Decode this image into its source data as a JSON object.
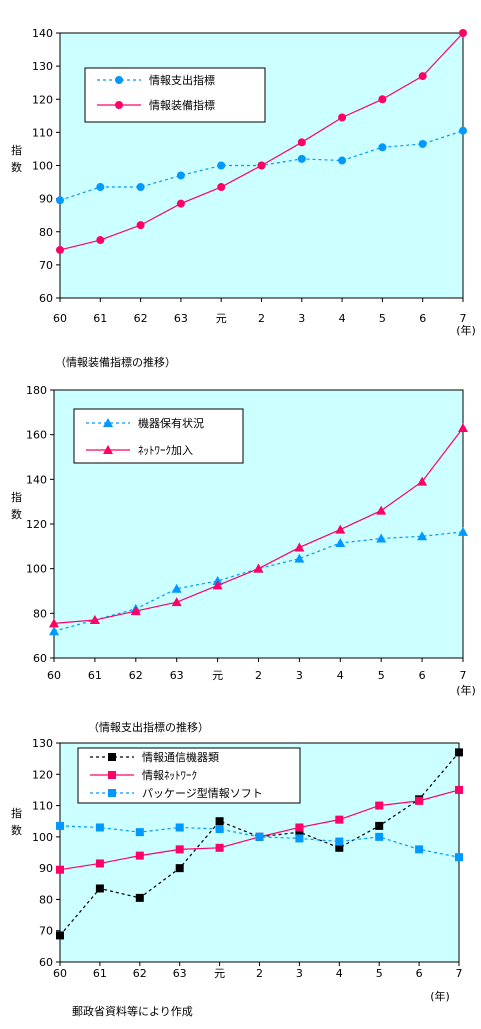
{
  "chart_data": [
    {
      "type": "line",
      "categories": [
        "60",
        "61",
        "62",
        "63",
        "元",
        "2",
        "3",
        "4",
        "5",
        "6",
        "7"
      ],
      "x_unit": "(年)",
      "ylabel": "指数",
      "ylim": [
        60,
        140
      ],
      "yticks": [
        60,
        70,
        80,
        90,
        100,
        110,
        120,
        130,
        140
      ],
      "grid": false,
      "background": "#ccffff",
      "legend_position": "top-left",
      "series": [
        {
          "name": "情報支出指標",
          "color": "#0099ff",
          "dashed": true,
          "marker": "circle",
          "values": [
            89.5,
            93.5,
            93.5,
            97.0,
            100.0,
            100.0,
            102.0,
            101.5,
            105.5,
            106.5,
            110.5
          ]
        },
        {
          "name": "情報装備指標",
          "color": "#ff0066",
          "dashed": false,
          "marker": "circle",
          "values": [
            74.5,
            77.5,
            82.0,
            88.5,
            93.5,
            100.0,
            107.0,
            114.5,
            120.0,
            127.0,
            140.0
          ]
        }
      ]
    },
    {
      "type": "line",
      "title": "（情報装備指標の推移）",
      "categories": [
        "60",
        "61",
        "62",
        "63",
        "元",
        "2",
        "3",
        "4",
        "5",
        "6",
        "7"
      ],
      "x_unit": "(年)",
      "ylabel": "指数",
      "ylim": [
        60,
        180
      ],
      "yticks": [
        60,
        80,
        100,
        120,
        140,
        160,
        180
      ],
      "grid": false,
      "background": "#ccffff",
      "legend_position": "top-left",
      "series": [
        {
          "name": "機器保有状況",
          "color": "#0099ff",
          "dashed": true,
          "marker": "triangle",
          "values": [
            72.0,
            77.0,
            82.0,
            91.0,
            94.5,
            100.0,
            104.5,
            111.5,
            113.5,
            114.5,
            116.5
          ]
        },
        {
          "name": "ﾈｯﾄﾜｰｸ加入",
          "color": "#ff0066",
          "dashed": false,
          "marker": "triangle",
          "values": [
            75.5,
            77.0,
            81.0,
            85.0,
            92.5,
            100.0,
            109.5,
            117.5,
            126.0,
            139.0,
            163.0
          ]
        }
      ]
    },
    {
      "type": "line",
      "title": "（情報支出指標の推移）",
      "categories": [
        "60",
        "61",
        "62",
        "63",
        "元",
        "2",
        "3",
        "4",
        "5",
        "6",
        "7"
      ],
      "x_unit": "(年)",
      "ylabel": "指数",
      "ylim": [
        60,
        130
      ],
      "yticks": [
        60,
        70,
        80,
        90,
        100,
        110,
        120,
        130
      ],
      "grid": false,
      "background": "#ccffff",
      "legend_position": "top-left",
      "series": [
        {
          "name": "情報通信機器類",
          "color": "#000000",
          "dashed": true,
          "marker": "square",
          "values": [
            68.5,
            83.5,
            80.5,
            90.0,
            105.0,
            100.0,
            101.5,
            96.5,
            103.5,
            112.0,
            127.0
          ]
        },
        {
          "name": "情報ﾈｯﾄﾜｰｸ",
          "color": "#ff0066",
          "dashed": false,
          "marker": "square",
          "values": [
            89.5,
            91.5,
            94.0,
            96.0,
            96.5,
            100.0,
            103.0,
            105.5,
            110.0,
            111.5,
            115.0
          ]
        },
        {
          "name": "パッケージ型情報ソフト",
          "color": "#0099ff",
          "dashed": true,
          "marker": "square",
          "values": [
            103.5,
            103.0,
            101.5,
            103.0,
            102.5,
            100.0,
            99.5,
            98.5,
            100.0,
            96.0,
            93.5
          ]
        }
      ]
    }
  ],
  "source_note": "郵政省資料等により作成"
}
